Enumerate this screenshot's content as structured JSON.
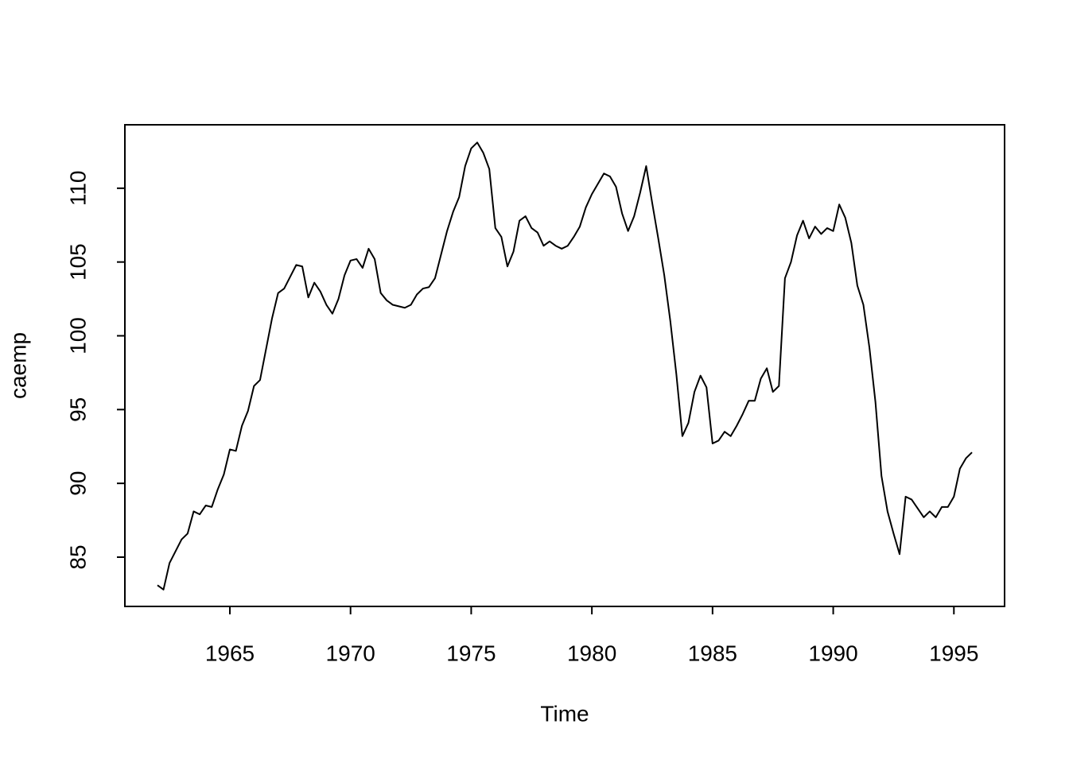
{
  "chart_data": {
    "type": "line",
    "x_label": "Time",
    "y_label": "caemp",
    "xlim": [
      1960.65,
      1997.1
    ],
    "ylim": [
      81.66,
      114.3
    ],
    "xticks": [
      1965,
      1970,
      1975,
      1980,
      1985,
      1990,
      1995
    ],
    "yticks": [
      85,
      90,
      95,
      100,
      105,
      110
    ],
    "x": [
      1962,
      1962.25,
      1962.5,
      1962.75,
      1963,
      1963.25,
      1963.5,
      1963.75,
      1964,
      1964.25,
      1964.5,
      1964.75,
      1965,
      1965.25,
      1965.5,
      1965.75,
      1966,
      1966.25,
      1966.5,
      1966.75,
      1967,
      1967.25,
      1967.5,
      1967.75,
      1968,
      1968.25,
      1968.5,
      1968.75,
      1969,
      1969.25,
      1969.5,
      1969.75,
      1970,
      1970.25,
      1970.5,
      1970.75,
      1971,
      1971.25,
      1971.5,
      1971.75,
      1972,
      1972.25,
      1972.5,
      1972.75,
      1973,
      1973.25,
      1973.5,
      1973.75,
      1974,
      1974.25,
      1974.5,
      1974.75,
      1975,
      1975.25,
      1975.5,
      1975.75,
      1976,
      1976.25,
      1976.5,
      1976.75,
      1977,
      1977.25,
      1977.5,
      1977.75,
      1978,
      1978.25,
      1978.5,
      1978.75,
      1979,
      1979.25,
      1979.5,
      1979.75,
      1980,
      1980.25,
      1980.5,
      1980.75,
      1981,
      1981.25,
      1981.5,
      1981.75,
      1982,
      1982.25,
      1982.5,
      1982.75,
      1983,
      1983.25,
      1983.5,
      1983.75,
      1984,
      1984.25,
      1984.5,
      1984.75,
      1985,
      1985.25,
      1985.5,
      1985.75,
      1986,
      1986.25,
      1986.5,
      1986.75,
      1987,
      1987.25,
      1987.5,
      1987.75,
      1988,
      1988.25,
      1988.5,
      1988.75,
      1989,
      1989.25,
      1989.5,
      1989.75,
      1990,
      1990.25,
      1990.5,
      1990.75,
      1991,
      1991.25,
      1991.5,
      1991.75,
      1992,
      1992.25,
      1992.5,
      1992.75,
      1993,
      1993.25,
      1993.5,
      1993.75,
      1994,
      1994.25,
      1994.5,
      1994.75,
      1995,
      1995.25,
      1995.5,
      1995.75
    ],
    "series": [
      {
        "name": "caemp",
        "color": "#000000",
        "values": [
          83.1,
          82.8,
          84.6,
          85.4,
          86.2,
          86.6,
          88.1,
          87.9,
          88.5,
          88.4,
          89.6,
          90.6,
          92.3,
          92.2,
          93.9,
          94.9,
          96.6,
          97.0,
          99.1,
          101.2,
          102.9,
          103.2,
          104.0,
          104.8,
          104.7,
          102.6,
          103.6,
          103.0,
          102.1,
          101.5,
          102.5,
          104.1,
          105.1,
          105.2,
          104.6,
          105.9,
          105.2,
          102.9,
          102.4,
          102.1,
          102.0,
          101.9,
          102.1,
          102.8,
          103.2,
          103.3,
          103.9,
          105.5,
          107.1,
          108.4,
          109.4,
          111.5,
          112.7,
          113.1,
          112.4,
          111.3,
          107.3,
          106.7,
          104.7,
          105.7,
          107.8,
          108.1,
          107.3,
          107.0,
          106.1,
          106.4,
          106.1,
          105.9,
          106.1,
          106.7,
          107.4,
          108.7,
          109.6,
          110.3,
          111.0,
          110.8,
          110.1,
          108.3,
          107.1,
          108.1,
          109.7,
          111.5,
          109.0,
          106.6,
          104.1,
          101.0,
          97.4,
          93.2,
          94.1,
          96.2,
          97.3,
          96.5,
          92.7,
          92.9,
          93.5,
          93.2,
          93.9,
          94.7,
          95.6,
          95.6,
          97.1,
          97.8,
          96.2,
          96.6,
          103.9,
          105.0,
          106.8,
          107.8,
          106.6,
          107.4,
          106.9,
          107.3,
          107.1,
          108.9,
          108.0,
          106.3,
          103.4,
          102.1,
          99.2,
          95.5,
          90.5,
          88.1,
          86.6,
          85.2,
          89.1,
          88.9,
          88.3,
          87.7,
          88.1,
          87.7,
          88.4,
          88.4,
          89.1,
          91.0,
          91.7,
          92.1
        ]
      }
    ]
  }
}
